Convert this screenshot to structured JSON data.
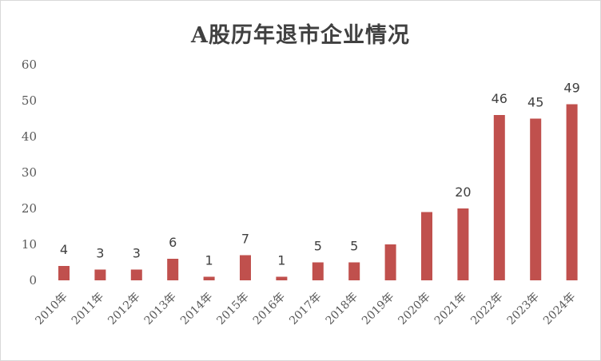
{
  "chart_data": {
    "type": "bar",
    "title": "A股历年退市企业情况",
    "categories": [
      "2010年",
      "2011年",
      "2012年",
      "2013年",
      "2014年",
      "2015年",
      "2016年",
      "2017年",
      "2018年",
      "2019年",
      "2020年",
      "2021年",
      "2022年",
      "2023年",
      "2024年"
    ],
    "values": [
      4,
      3,
      3,
      6,
      1,
      7,
      1,
      5,
      5,
      10,
      19,
      20,
      46,
      45,
      49
    ],
    "data_labels": [
      "4",
      "3",
      "3",
      "6",
      "1",
      "7",
      "1",
      "5",
      "5",
      "",
      "",
      "20",
      "46",
      "45",
      "49"
    ],
    "y_ticks": [
      "0",
      "10",
      "20",
      "30",
      "40",
      "50",
      "60"
    ],
    "ylim": [
      0,
      60
    ],
    "bar_color": "#c0504d",
    "grid": false,
    "legend": "none"
  }
}
